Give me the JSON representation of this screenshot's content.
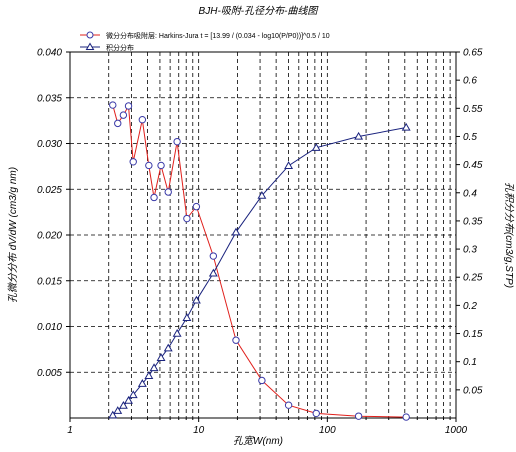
{
  "chart_data": {
    "type": "line",
    "title": "BJH-吸附-孔径分布-曲线图",
    "xlabel": "孔宽W(nm)",
    "ylabel_left": "孔微分分布 dV/dW (cm3/g nm)",
    "ylabel_right": "孔积分分布(cm3/g,STP)",
    "x_scale": "log",
    "xlim": [
      1,
      1000
    ],
    "ylim_left": [
      0,
      0.04
    ],
    "ylim_right": [
      0,
      0.65
    ],
    "grid": true,
    "legend_position": "top-left",
    "x_ticks": [
      "1",
      "10",
      "100",
      "1000"
    ],
    "y_ticks_left": [
      "0.005",
      "0.010",
      "0.015",
      "0.020",
      "0.025",
      "0.030",
      "0.035",
      "0.040"
    ],
    "y_ticks_right": [
      "0.05",
      "0.1",
      "0.15",
      "0.2",
      "0.25",
      "0.3",
      "0.35",
      "0.4",
      "0.45",
      "0.5",
      "0.55",
      "0.6",
      "0.65"
    ],
    "series": [
      {
        "name": "微分分布吸附层: Harkins-Jura  t = [13.99 / (0.034 - log10(P/P0))]^0.5 / 10",
        "axis": "left",
        "marker": "circle",
        "color": "#e0201c",
        "x": [
          2.15,
          2.35,
          2.6,
          2.85,
          3.1,
          3.65,
          4.1,
          4.5,
          5.1,
          5.8,
          6.8,
          8.1,
          9.6,
          13.0,
          19.5,
          31.0,
          50.0,
          82.0,
          175.0,
          410.0
        ],
        "y": [
          0.0342,
          0.0322,
          0.0331,
          0.0341,
          0.028,
          0.0326,
          0.0276,
          0.0241,
          0.0276,
          0.0247,
          0.0302,
          0.0218,
          0.0231,
          0.0177,
          0.0085,
          0.0041,
          0.0014,
          0.0005,
          0.0002,
          0.0001
        ]
      },
      {
        "name": "积分分布",
        "axis": "right",
        "marker": "triangle",
        "color": "#1a237e",
        "x": [
          2.15,
          2.35,
          2.6,
          2.85,
          3.1,
          3.65,
          4.1,
          4.5,
          5.1,
          5.8,
          6.8,
          8.1,
          9.6,
          13.0,
          19.5,
          31.0,
          50.0,
          82.0,
          175.0,
          410.0
        ],
        "y": [
          0.005,
          0.013,
          0.022,
          0.031,
          0.041,
          0.061,
          0.075,
          0.089,
          0.107,
          0.124,
          0.15,
          0.178,
          0.209,
          0.257,
          0.33,
          0.395,
          0.448,
          0.48,
          0.5,
          0.516
        ]
      }
    ]
  }
}
